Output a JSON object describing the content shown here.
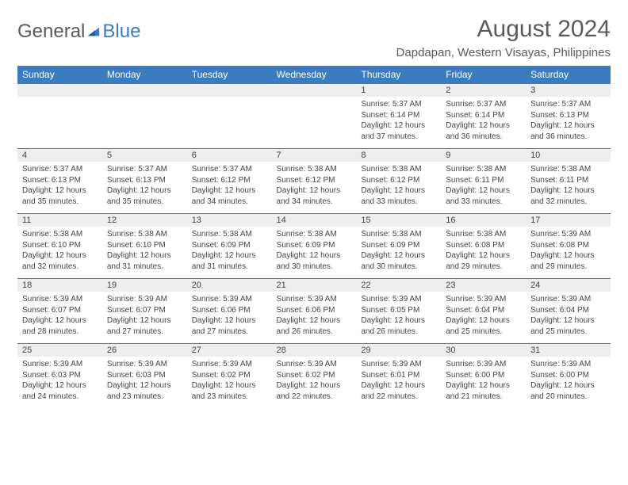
{
  "logo": {
    "text1": "General",
    "text2": "Blue"
  },
  "title": "August 2024",
  "location": "Dapdapan, Western Visayas, Philippines",
  "colors": {
    "header_bg": "#3a7cbf",
    "header_text": "#ffffff",
    "daynum_bg": "#eeeeee",
    "border": "#3a7cbf",
    "text": "#444444",
    "logo_gray": "#5a5a5a",
    "logo_blue": "#3a7cbf"
  },
  "day_headers": [
    "Sunday",
    "Monday",
    "Tuesday",
    "Wednesday",
    "Thursday",
    "Friday",
    "Saturday"
  ],
  "weeks": [
    {
      "nums": [
        "",
        "",
        "",
        "",
        "1",
        "2",
        "3"
      ],
      "details": [
        "",
        "",
        "",
        "",
        "Sunrise: 5:37 AM\nSunset: 6:14 PM\nDaylight: 12 hours and 37 minutes.",
        "Sunrise: 5:37 AM\nSunset: 6:14 PM\nDaylight: 12 hours and 36 minutes.",
        "Sunrise: 5:37 AM\nSunset: 6:13 PM\nDaylight: 12 hours and 36 minutes."
      ]
    },
    {
      "nums": [
        "4",
        "5",
        "6",
        "7",
        "8",
        "9",
        "10"
      ],
      "details": [
        "Sunrise: 5:37 AM\nSunset: 6:13 PM\nDaylight: 12 hours and 35 minutes.",
        "Sunrise: 5:37 AM\nSunset: 6:13 PM\nDaylight: 12 hours and 35 minutes.",
        "Sunrise: 5:37 AM\nSunset: 6:12 PM\nDaylight: 12 hours and 34 minutes.",
        "Sunrise: 5:38 AM\nSunset: 6:12 PM\nDaylight: 12 hours and 34 minutes.",
        "Sunrise: 5:38 AM\nSunset: 6:12 PM\nDaylight: 12 hours and 33 minutes.",
        "Sunrise: 5:38 AM\nSunset: 6:11 PM\nDaylight: 12 hours and 33 minutes.",
        "Sunrise: 5:38 AM\nSunset: 6:11 PM\nDaylight: 12 hours and 32 minutes."
      ]
    },
    {
      "nums": [
        "11",
        "12",
        "13",
        "14",
        "15",
        "16",
        "17"
      ],
      "details": [
        "Sunrise: 5:38 AM\nSunset: 6:10 PM\nDaylight: 12 hours and 32 minutes.",
        "Sunrise: 5:38 AM\nSunset: 6:10 PM\nDaylight: 12 hours and 31 minutes.",
        "Sunrise: 5:38 AM\nSunset: 6:09 PM\nDaylight: 12 hours and 31 minutes.",
        "Sunrise: 5:38 AM\nSunset: 6:09 PM\nDaylight: 12 hours and 30 minutes.",
        "Sunrise: 5:38 AM\nSunset: 6:09 PM\nDaylight: 12 hours and 30 minutes.",
        "Sunrise: 5:38 AM\nSunset: 6:08 PM\nDaylight: 12 hours and 29 minutes.",
        "Sunrise: 5:39 AM\nSunset: 6:08 PM\nDaylight: 12 hours and 29 minutes."
      ]
    },
    {
      "nums": [
        "18",
        "19",
        "20",
        "21",
        "22",
        "23",
        "24"
      ],
      "details": [
        "Sunrise: 5:39 AM\nSunset: 6:07 PM\nDaylight: 12 hours and 28 minutes.",
        "Sunrise: 5:39 AM\nSunset: 6:07 PM\nDaylight: 12 hours and 27 minutes.",
        "Sunrise: 5:39 AM\nSunset: 6:06 PM\nDaylight: 12 hours and 27 minutes.",
        "Sunrise: 5:39 AM\nSunset: 6:06 PM\nDaylight: 12 hours and 26 minutes.",
        "Sunrise: 5:39 AM\nSunset: 6:05 PM\nDaylight: 12 hours and 26 minutes.",
        "Sunrise: 5:39 AM\nSunset: 6:04 PM\nDaylight: 12 hours and 25 minutes.",
        "Sunrise: 5:39 AM\nSunset: 6:04 PM\nDaylight: 12 hours and 25 minutes."
      ]
    },
    {
      "nums": [
        "25",
        "26",
        "27",
        "28",
        "29",
        "30",
        "31"
      ],
      "details": [
        "Sunrise: 5:39 AM\nSunset: 6:03 PM\nDaylight: 12 hours and 24 minutes.",
        "Sunrise: 5:39 AM\nSunset: 6:03 PM\nDaylight: 12 hours and 23 minutes.",
        "Sunrise: 5:39 AM\nSunset: 6:02 PM\nDaylight: 12 hours and 23 minutes.",
        "Sunrise: 5:39 AM\nSunset: 6:02 PM\nDaylight: 12 hours and 22 minutes.",
        "Sunrise: 5:39 AM\nSunset: 6:01 PM\nDaylight: 12 hours and 22 minutes.",
        "Sunrise: 5:39 AM\nSunset: 6:00 PM\nDaylight: 12 hours and 21 minutes.",
        "Sunrise: 5:39 AM\nSunset: 6:00 PM\nDaylight: 12 hours and 20 minutes."
      ]
    }
  ]
}
